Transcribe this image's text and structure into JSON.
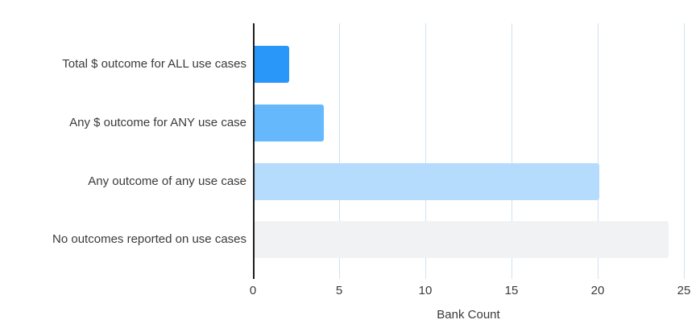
{
  "chart_data": {
    "type": "bar",
    "orientation": "horizontal",
    "title": "",
    "xlabel": "Bank Count",
    "ylabel": "",
    "categories": [
      "Total $ outcome for ALL use cases",
      "Any $ outcome for ANY use case",
      "Any outcome of any use case",
      "No outcomes reported on use cases"
    ],
    "values": [
      2,
      4,
      20,
      24
    ],
    "bar_colors": [
      "#2997FA",
      "#66B8FC",
      "#B5DCFC",
      "#F0F2F4"
    ],
    "xlim": [
      0,
      25
    ],
    "xticks": [
      0,
      5,
      10,
      15,
      20,
      25
    ],
    "grid": true,
    "legend": false,
    "gridline_color": "#CFE2F2",
    "axis_line_color": "#1F1F1F",
    "text_color": "#3A3A3A"
  }
}
